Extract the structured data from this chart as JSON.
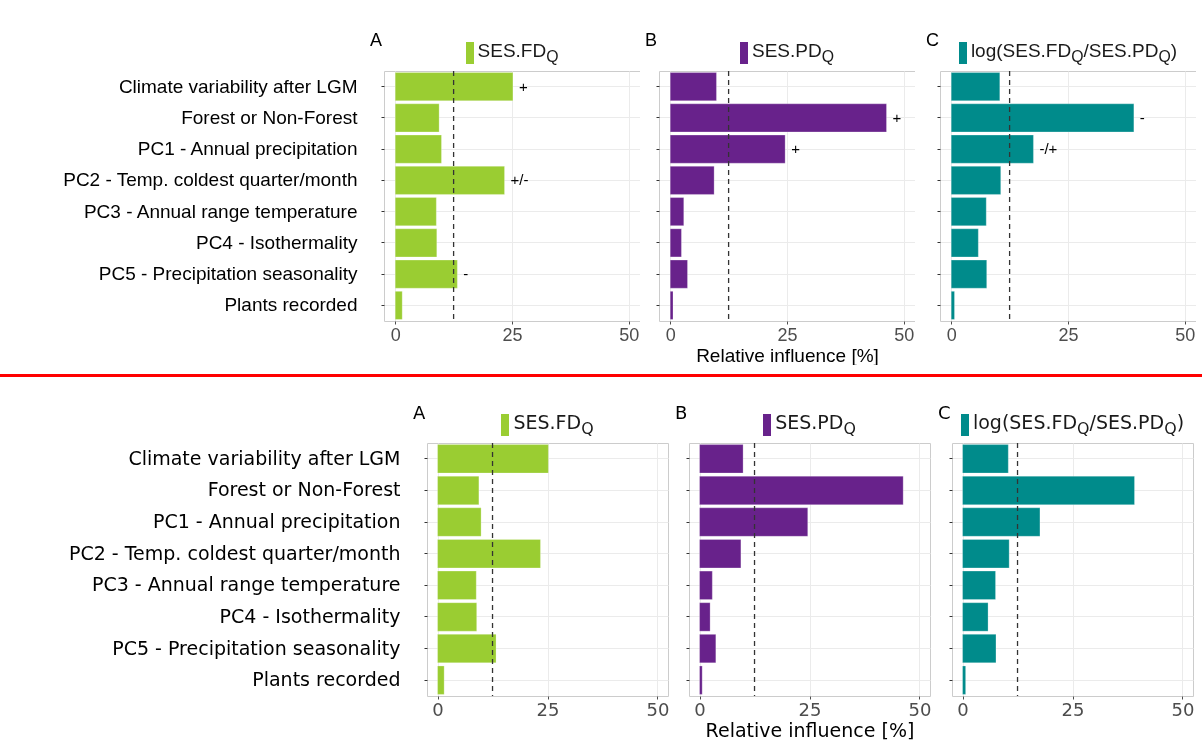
{
  "chart_data": [
    {
      "type": "bar",
      "orientation": "horizontal",
      "title": "A",
      "categories": [
        "Climate variability after LGM",
        "Forest or Non-Forest",
        "PC1 - Annual precipitation",
        "PC2 - Temp. coldest quarter/month",
        "PC3 - Annual range temperature",
        "PC4 - Isothermality",
        "PC5 - Precipitation seasonality",
        "Plants recorded"
      ],
      "series": [
        {
          "name": "SES.FD$_{Q}$",
          "color": "#9acd32",
          "values": [
            25.2,
            9.4,
            9.9,
            23.4,
            8.8,
            8.9,
            13.3,
            1.5
          ]
        }
      ],
      "xlim": [
        -2.4,
        52.4
      ],
      "xticks": [
        0,
        25,
        50
      ],
      "grid": true,
      "legend": "top",
      "ref_lines": [
        {
          "axis": "x",
          "value": 12.5,
          "color": "#333333",
          "line_style": "dashed"
        }
      ],
      "annotations": [
        {
          "text": "+",
          "x": 25.2,
          "y": "Climate variability after LGM"
        },
        {
          "text": "+/-",
          "x": 23.4,
          "y": "PC2 - Temp. coldest quarter/month"
        },
        {
          "text": "-",
          "x": 13.3,
          "y": "PC5 - Precipitation seasonality"
        }
      ]
    },
    {
      "type": "bar",
      "orientation": "horizontal",
      "title": "B",
      "xlabel": "Relative influence [%]",
      "tick_labels": "x",
      "categories": [
        "Climate variability after LGM",
        "Forest or Non-Forest",
        "PC1 - Annual precipitation",
        "PC2 - Temp. coldest quarter/month",
        "PC3 - Annual range temperature",
        "PC4 - Isothermality",
        "PC5 - Precipitation seasonality",
        "Plants recorded"
      ],
      "series": [
        {
          "name": "SES.PD$_{Q}$",
          "color": "#68228b",
          "values": [
            9.9,
            46.3,
            24.6,
            9.4,
            2.9,
            2.4,
            3.7,
            0.6
          ]
        }
      ],
      "xlim": [
        -2.4,
        52.4
      ],
      "xticks": [
        0,
        25,
        50
      ],
      "grid": true,
      "legend": "top",
      "ref_lines": [
        {
          "axis": "x",
          "value": 12.5,
          "color": "#333333",
          "line_style": "dashed"
        }
      ],
      "annotations": [
        {
          "text": "+",
          "x": 46.3,
          "y": "Forest or Non-Forest"
        },
        {
          "text": "+",
          "x": 24.6,
          "y": "PC1 - Annual precipitation"
        }
      ]
    },
    {
      "type": "bar",
      "orientation": "horizontal",
      "title": "C",
      "tick_labels": "x",
      "categories": [
        "Climate variability after LGM",
        "Forest or Non-Forest",
        "PC1 - Annual precipitation",
        "PC2 - Temp. coldest quarter/month",
        "PC3 - Annual range temperature",
        "PC4 - Isothermality",
        "PC5 - Precipitation seasonality",
        "Plants recorded"
      ],
      "series": [
        {
          "name": "log(SES.FD$_{Q}$/SES.PD$_{Q}$)",
          "color": "#008b8b",
          "values": [
            10.4,
            39.1,
            17.6,
            10.6,
            7.5,
            5.8,
            7.6,
            0.7
          ]
        }
      ],
      "xlim": [
        -2.4,
        52.4
      ],
      "xticks": [
        0,
        25,
        50
      ],
      "grid": true,
      "legend": "top",
      "ref_lines": [
        {
          "axis": "x",
          "value": 12.5,
          "color": "#333333",
          "line_style": "dashed"
        }
      ],
      "annotations": [
        {
          "text": "-",
          "x": 39.1,
          "y": "Forest or Non-Forest"
        },
        {
          "text": "-/+",
          "x": 17.6,
          "y": "PC1 - Annual precipitation"
        }
      ]
    },
    {
      "type": "bar",
      "orientation": "horizontal",
      "title": "A",
      "categories": [
        "Climate variability after LGM",
        "Forest or Non-Forest",
        "PC1 - Annual precipitation",
        "PC2 - Temp. coldest quarter/month",
        "PC3 - Annual range temperature",
        "PC4 - Isothermality",
        "PC5 - Precipitation seasonality",
        "Plants recorded"
      ],
      "series": [
        {
          "name": "SES.FD$_{Q}$",
          "color": "#9acd32",
          "values": [
            25.2,
            9.4,
            9.9,
            23.4,
            8.8,
            8.9,
            13.3,
            1.5
          ]
        }
      ],
      "xlim": [
        -2.4,
        52.4
      ],
      "xticks": [
        0,
        25,
        50
      ],
      "grid": true,
      "legend": "top",
      "ref_lines": [
        {
          "axis": "x",
          "value": 12.5,
          "color": "#333333",
          "line_style": "dashed"
        }
      ]
    },
    {
      "type": "bar",
      "orientation": "horizontal",
      "title": "B",
      "xlabel": "Relative influence [%]",
      "tick_labels": "x",
      "categories": [
        "Climate variability after LGM",
        "Forest or Non-Forest",
        "PC1 - Annual precipitation",
        "PC2 - Temp. coldest quarter/month",
        "PC3 - Annual range temperature",
        "PC4 - Isothermality",
        "PC5 - Precipitation seasonality",
        "Plants recorded"
      ],
      "series": [
        {
          "name": "SES.PD$_{Q}$",
          "color": "#68228b",
          "values": [
            9.9,
            46.3,
            24.6,
            9.4,
            2.9,
            2.4,
            3.7,
            0.6
          ]
        }
      ],
      "xlim": [
        -2.4,
        52.4
      ],
      "xticks": [
        0,
        25,
        50
      ],
      "grid": true,
      "legend": "top",
      "ref_lines": [
        {
          "axis": "x",
          "value": 12.5,
          "color": "#333333",
          "line_style": "dashed"
        }
      ]
    },
    {
      "type": "bar",
      "orientation": "horizontal",
      "title": "C",
      "tick_labels": "x",
      "categories": [
        "Climate variability after LGM",
        "Forest or Non-Forest",
        "PC1 - Annual precipitation",
        "PC2 - Temp. coldest quarter/month",
        "PC3 - Annual range temperature",
        "PC4 - Isothermality",
        "PC5 - Precipitation seasonality",
        "Plants recorded"
      ],
      "series": [
        {
          "name": "log(SES.FD$_{Q}$/SES.PD$_{Q}$)",
          "color": "#008b8b",
          "values": [
            10.4,
            39.1,
            17.6,
            10.6,
            7.5,
            5.8,
            7.6,
            0.7
          ]
        }
      ],
      "xlim": [
        -2.4,
        52.4
      ],
      "xticks": [
        0,
        25,
        50
      ],
      "grid": true,
      "legend": "top",
      "ref_lines": [
        {
          "axis": "x",
          "value": 12.5,
          "color": "#333333",
          "line_style": "dashed"
        }
      ]
    }
  ]
}
